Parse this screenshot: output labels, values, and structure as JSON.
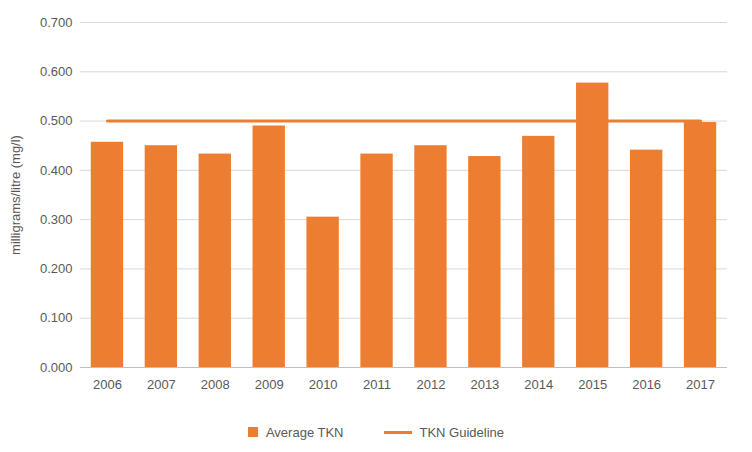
{
  "chart_data": {
    "type": "bar",
    "categories": [
      "2006",
      "2007",
      "2008",
      "2009",
      "2010",
      "2011",
      "2012",
      "2013",
      "2014",
      "2015",
      "2016",
      "2017"
    ],
    "series": [
      {
        "name": "Average TKN",
        "color": "#ed7d31",
        "values": [
          0.457,
          0.45,
          0.433,
          0.49,
          0.305,
          0.433,
          0.45,
          0.428,
          0.469,
          0.577,
          0.441,
          0.497
        ]
      },
      {
        "name": "TKN Guideline",
        "type": "line",
        "color": "#ed7d31",
        "values": [
          0.5,
          0.5,
          0.5,
          0.5,
          0.5,
          0.5,
          0.5,
          0.5,
          0.5,
          0.5,
          0.5,
          0.5
        ]
      }
    ],
    "ylabel": "milligrams/litre (mg/l)",
    "ylim": [
      0,
      0.7
    ],
    "yticks": [
      {
        "value": 0,
        "label": "0.000"
      },
      {
        "value": 0.1,
        "label": "0.100"
      },
      {
        "value": 0.2,
        "label": "0.200"
      },
      {
        "value": 0.3,
        "label": "0.300"
      },
      {
        "value": 0.4,
        "label": "0.400"
      },
      {
        "value": 0.5,
        "label": "0.500"
      },
      {
        "value": 0.6,
        "label": "0.600"
      },
      {
        "value": 0.7,
        "label": "0.700"
      }
    ],
    "grid": true,
    "legend": "bottom"
  }
}
